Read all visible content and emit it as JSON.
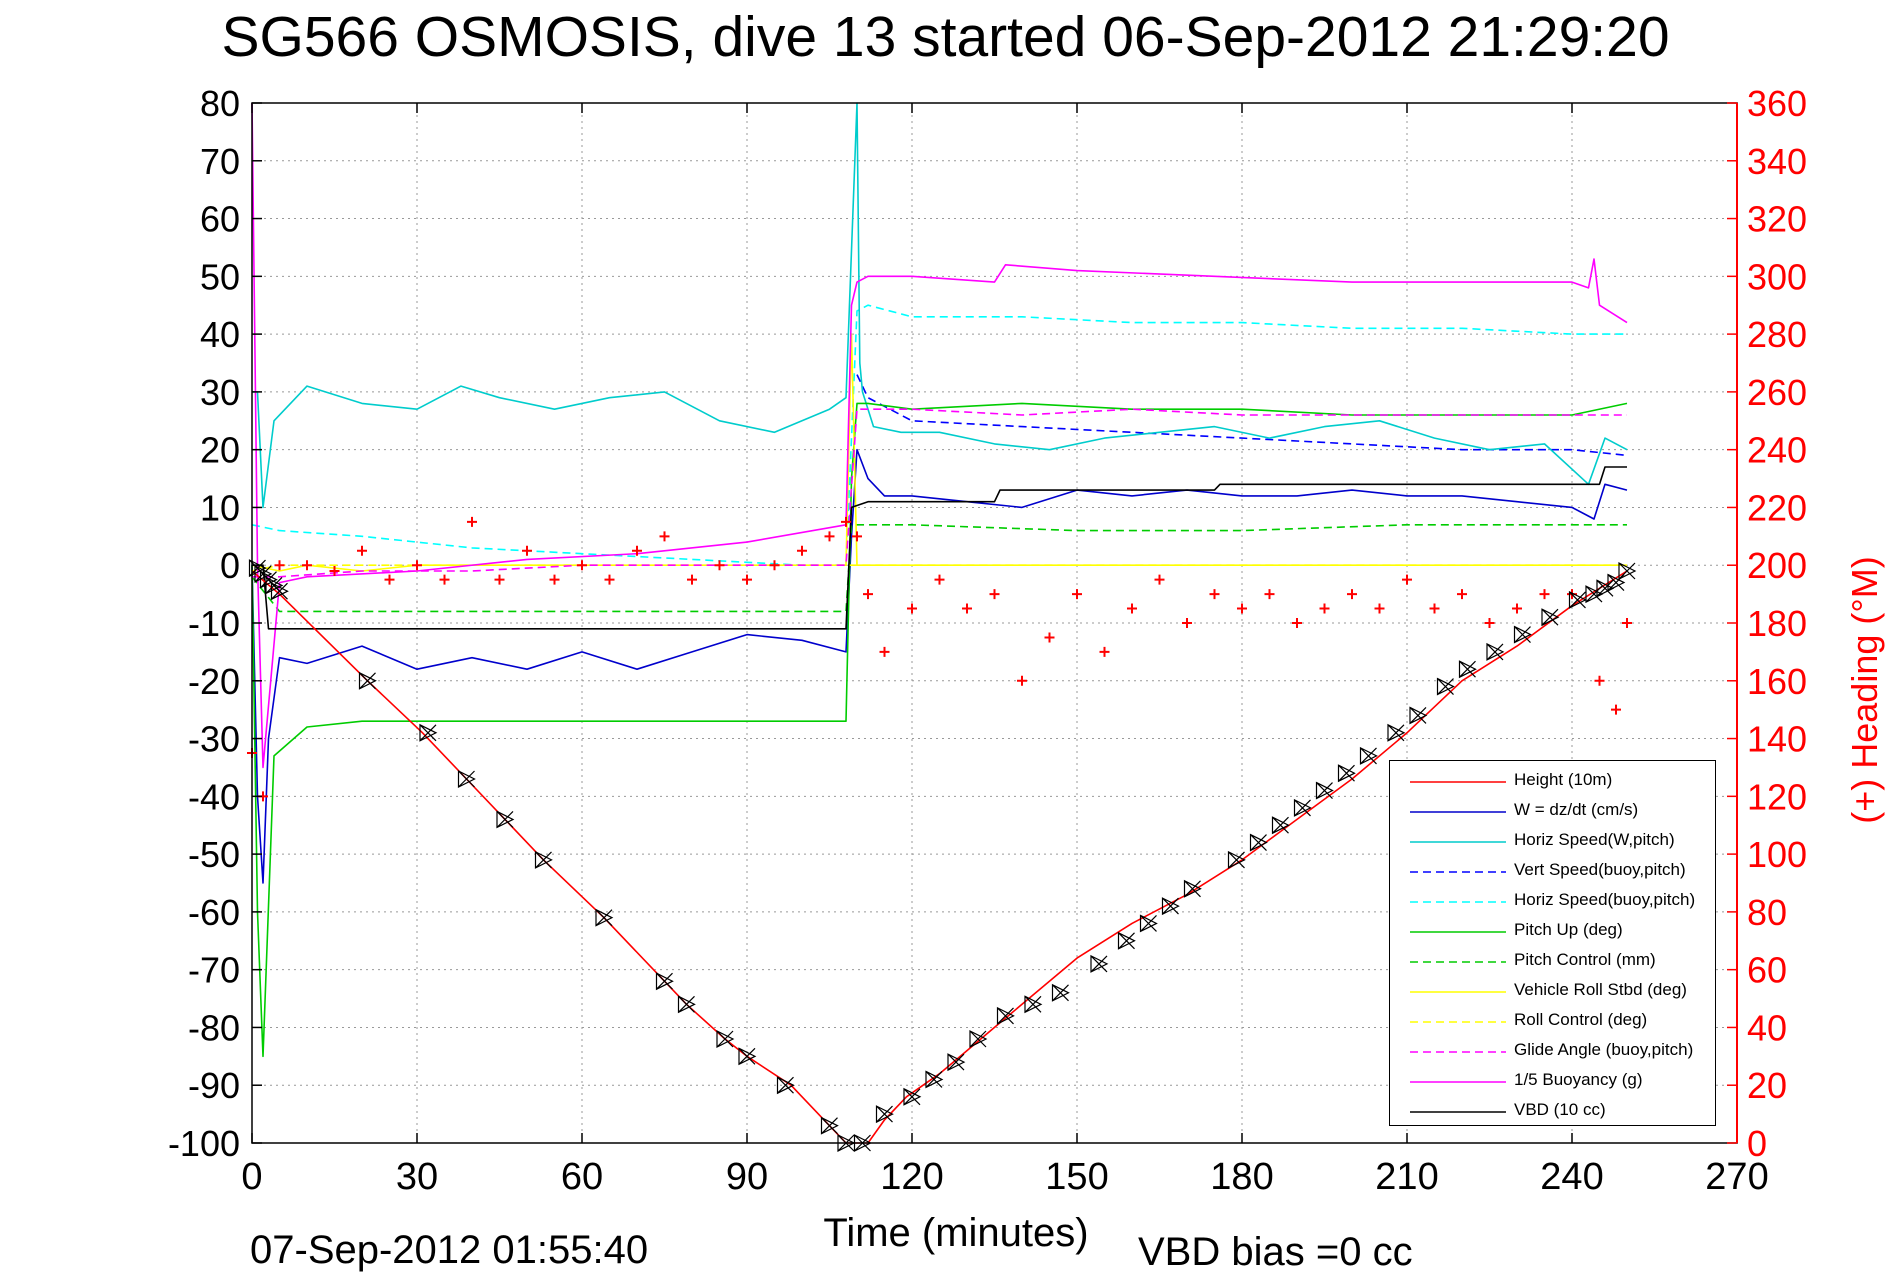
{
  "title": "SG566 OSMOSIS, dive 13 started 06-Sep-2012 21:29:20",
  "footer": {
    "end_time": "07-Sep-2012 01:55:40",
    "vbd_bias": "VBD bias =0 cc"
  },
  "chart_data": {
    "type": "line",
    "title": "SG566 OSMOSIS, dive 13 started 06-Sep-2012 21:29:20",
    "xlabel": "Time (minutes)",
    "ylabel": "",
    "y2label": "(+) Heading (°M)",
    "xlim": [
      0,
      270
    ],
    "ylim": [
      -100,
      80
    ],
    "y2lim": [
      0,
      360
    ],
    "xticks": [
      "0",
      "30",
      "60",
      "90",
      "120",
      "150",
      "180",
      "210",
      "240",
      "270"
    ],
    "yticks": [
      "80",
      "70",
      "60",
      "50",
      "40",
      "30",
      "20",
      "10",
      "0",
      "-10",
      "-20",
      "-30",
      "-40",
      "-50",
      "-60",
      "-70",
      "-80",
      "-90",
      "-100"
    ],
    "y2ticks": [
      "360",
      "340",
      "320",
      "300",
      "280",
      "260",
      "240",
      "220",
      "200",
      "180",
      "160",
      "140",
      "120",
      "100",
      "80",
      "60",
      "40",
      "20",
      "0"
    ],
    "grid": true,
    "legend_position": "bottom-right",
    "colors": {
      "axis": "#000000",
      "right_axis": "#ff0000",
      "grid": "#999999"
    },
    "series": [
      {
        "name": "Height (10m)",
        "color": "#ff0000",
        "dash": "solid",
        "x": [
          0,
          5,
          21,
          31,
          39,
          46,
          53,
          64,
          75,
          79,
          86,
          90,
          98,
          105,
          108,
          112,
          115,
          119,
          125,
          130,
          135,
          140,
          150,
          160,
          170,
          180,
          190,
          200,
          210,
          220,
          230,
          240,
          250
        ],
        "y": [
          -1,
          -5,
          -20,
          -29,
          -37,
          -44,
          -51,
          -61,
          -72,
          -76,
          -82,
          -85,
          -90,
          -97,
          -100,
          -100,
          -96,
          -92,
          -88,
          -84,
          -80,
          -76,
          -68,
          -62,
          -57,
          -51,
          -44,
          -37,
          -29,
          -20,
          -14,
          -7,
          -1
        ]
      },
      {
        "name": "W = dz/dt (cm/s)",
        "color": "#0000cc",
        "dash": "solid",
        "x": [
          0,
          1,
          2,
          3,
          5,
          10,
          20,
          30,
          40,
          50,
          60,
          70,
          80,
          90,
          100,
          108,
          109,
          110,
          112,
          115,
          120,
          130,
          140,
          150,
          160,
          170,
          180,
          190,
          200,
          210,
          220,
          230,
          240,
          244,
          246,
          250
        ],
        "y": [
          0,
          -40,
          -55,
          -30,
          -16,
          -17,
          -14,
          -18,
          -16,
          -18,
          -15,
          -18,
          -15,
          -12,
          -13,
          -15,
          5,
          20,
          15,
          12,
          12,
          11,
          10,
          13,
          12,
          13,
          12,
          12,
          13,
          12,
          12,
          11,
          10,
          8,
          14,
          13
        ]
      },
      {
        "name": "Horiz Speed(W,pitch)",
        "color": "#00cccc",
        "dash": "solid",
        "x": [
          0,
          1,
          2,
          4,
          10,
          20,
          30,
          38,
          45,
          55,
          65,
          75,
          85,
          95,
          105,
          108,
          110,
          110.5,
          111,
          113,
          118,
          125,
          135,
          145,
          155,
          165,
          175,
          185,
          195,
          205,
          215,
          225,
          235,
          243,
          246,
          250
        ],
        "y": [
          30,
          30,
          10,
          25,
          31,
          28,
          27,
          31,
          29,
          27,
          29,
          30,
          25,
          23,
          27,
          29,
          80,
          35,
          30,
          24,
          23,
          23,
          21,
          20,
          22,
          23,
          24,
          22,
          24,
          25,
          22,
          20,
          21,
          14,
          22,
          20
        ]
      },
      {
        "name": "Vert Speed(buoy,pitch)",
        "color": "#0000ff",
        "dash": "dashed",
        "x": [
          110,
          112,
          120,
          140,
          160,
          180,
          200,
          220,
          240,
          250
        ],
        "y": [
          33,
          29,
          25,
          24,
          23,
          22,
          21,
          20,
          20,
          19
        ]
      },
      {
        "name": "Horiz Speed(buoy,pitch)",
        "color": "#00ffff",
        "dash": "dashed",
        "x": [
          0,
          5,
          20,
          40,
          60,
          80,
          100,
          108,
          110,
          112,
          120,
          140,
          160,
          180,
          200,
          220,
          240,
          250
        ],
        "y": [
          7,
          6,
          5,
          3,
          2,
          1,
          0,
          0,
          44,
          45,
          43,
          43,
          42,
          42,
          41,
          41,
          40,
          40
        ]
      },
      {
        "name": "Pitch Up (deg)",
        "color": "#00cc00",
        "dash": "solid",
        "x": [
          0,
          1,
          2,
          4,
          10,
          20,
          30,
          40,
          50,
          60,
          70,
          80,
          90,
          100,
          108,
          109,
          110,
          112,
          120,
          140,
          160,
          180,
          200,
          220,
          240,
          250
        ],
        "y": [
          0,
          -60,
          -85,
          -33,
          -28,
          -27,
          -27,
          -27,
          -27,
          -27,
          -27,
          -27,
          -27,
          -27,
          -27,
          15,
          28,
          28,
          27,
          28,
          27,
          27,
          26,
          26,
          26,
          28
        ]
      },
      {
        "name": "Pitch Control (mm)",
        "color": "#00cc00",
        "dash": "dashed",
        "x": [
          0,
          5,
          20,
          50,
          80,
          100,
          108,
          109,
          112,
          120,
          150,
          180,
          210,
          240,
          250
        ],
        "y": [
          -2,
          -8,
          -8,
          -8,
          -8,
          -8,
          -8,
          7,
          7,
          7,
          6,
          6,
          7,
          7,
          7
        ]
      },
      {
        "name": "Vehicle Roll Stbd (deg)",
        "color": "#ffff00",
        "dash": "solid",
        "x": [
          0,
          5,
          10,
          20,
          30,
          40,
          50,
          60,
          70,
          80,
          90,
          100,
          108,
          109,
          110,
          112,
          120,
          140,
          160,
          180,
          200,
          220,
          240,
          250
        ],
        "y": [
          0,
          -1,
          0,
          -1,
          0,
          0,
          0,
          0,
          0,
          0,
          0,
          0,
          0,
          40,
          0,
          0,
          0,
          0,
          0,
          0,
          0,
          0,
          0,
          0
        ]
      },
      {
        "name": "Roll Control (deg)",
        "color": "#ffff00",
        "dash": "dashed",
        "x": [
          0,
          5,
          10,
          30,
          60,
          90,
          108,
          110,
          112,
          140,
          170,
          200,
          230,
          250
        ],
        "y": [
          -1,
          0,
          0,
          0,
          0,
          0,
          0,
          0,
          0,
          0,
          0,
          0,
          0,
          0
        ]
      },
      {
        "name": "Glide Angle (buoy,pitch)",
        "color": "#ff00ff",
        "dash": "dashed",
        "x": [
          0,
          5,
          20,
          40,
          60,
          80,
          100,
          108,
          110,
          112,
          120,
          140,
          160,
          180,
          200,
          220,
          240,
          250
        ],
        "y": [
          -2,
          -2,
          -1,
          -1,
          0,
          0,
          0,
          0,
          27,
          27,
          27,
          26,
          27,
          26,
          26,
          26,
          26,
          26
        ]
      },
      {
        "name": "1/5 Buoyancy (g)",
        "color": "#ff00ff",
        "dash": "solid",
        "x": [
          0,
          1,
          2,
          5,
          10,
          30,
          50,
          70,
          90,
          108,
          109,
          110,
          112,
          120,
          135,
          137,
          150,
          175,
          200,
          225,
          240,
          243,
          244,
          245,
          250
        ],
        "y": [
          80,
          0,
          -35,
          -3,
          -2,
          -1,
          1,
          2,
          4,
          7,
          45,
          49,
          50,
          50,
          49,
          52,
          51,
          50,
          49,
          49,
          49,
          48,
          53,
          45,
          42
        ]
      },
      {
        "name": "VBD (10 cc)",
        "color": "#000000",
        "dash": "solid",
        "x": [
          0,
          2,
          3,
          108,
          109,
          112,
          135,
          136,
          175,
          176,
          220,
          221,
          245,
          246,
          250
        ],
        "y": [
          0,
          0,
          -11,
          -11,
          10,
          11,
          11,
          13,
          13,
          14,
          14,
          14,
          14,
          17,
          17
        ]
      }
    ],
    "heading": {
      "name": "(+) Heading (°M)",
      "color": "#ff0000",
      "axis": "right",
      "x": [
        0,
        2,
        5,
        10,
        15,
        20,
        25,
        30,
        35,
        40,
        45,
        50,
        55,
        60,
        65,
        70,
        75,
        80,
        85,
        90,
        95,
        100,
        105,
        108,
        110,
        112,
        115,
        120,
        125,
        130,
        135,
        140,
        145,
        150,
        155,
        160,
        165,
        170,
        175,
        180,
        185,
        190,
        195,
        200,
        205,
        210,
        215,
        220,
        225,
        230,
        235,
        240,
        245,
        248,
        250
      ],
      "y": [
        135,
        120,
        200,
        200,
        198,
        205,
        195,
        200,
        195,
        215,
        195,
        205,
        195,
        200,
        195,
        205,
        210,
        195,
        200,
        195,
        200,
        205,
        210,
        215,
        210,
        190,
        170,
        185,
        195,
        185,
        190,
        160,
        175,
        190,
        170,
        185,
        195,
        180,
        190,
        185,
        190,
        180,
        185,
        190,
        185,
        195,
        185,
        190,
        180,
        185,
        190,
        190,
        160,
        150,
        180
      ]
    },
    "depth_markers": {
      "series": "Height (10m)",
      "x": [
        1,
        2,
        3,
        4,
        5,
        21,
        32,
        39,
        46,
        53,
        64,
        75,
        79,
        86,
        90,
        97,
        105,
        108,
        111,
        115,
        120,
        124,
        128,
        132,
        137,
        142,
        147,
        154,
        159,
        163,
        167,
        171,
        179,
        183,
        187,
        191,
        195,
        199,
        203,
        208,
        212,
        217,
        221,
        226,
        231,
        236,
        241,
        244,
        246,
        248,
        250
      ],
      "y": [
        -0.5,
        -1.5,
        -2.5,
        -3.5,
        -4.5,
        -20,
        -29,
        -37,
        -44,
        -51,
        -61,
        -72,
        -76,
        -82,
        -85,
        -90,
        -97,
        -100,
        -100,
        -95,
        -92,
        -89,
        -86,
        -82,
        -78,
        -76,
        -74,
        -69,
        -65,
        -62,
        -59,
        -56,
        -51,
        -48,
        -45,
        -42,
        -39,
        -36,
        -33,
        -29,
        -26,
        -21,
        -18,
        -15,
        -12,
        -9,
        -6,
        -5,
        -4,
        -3,
        -1
      ]
    }
  }
}
